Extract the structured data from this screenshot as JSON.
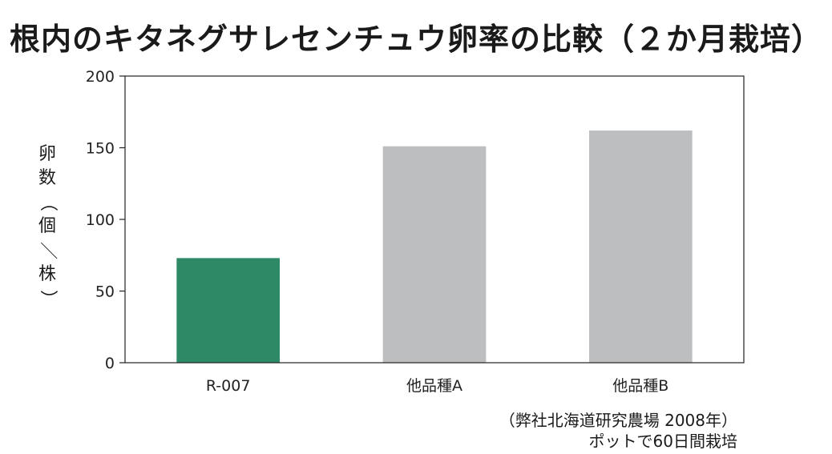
{
  "title": "根内のキタネグサレセンチュウ卵率の比較（２か月栽培）",
  "chart_data": {
    "type": "bar",
    "categories": [
      "R-007",
      "他品種A",
      "他品種B"
    ],
    "values": [
      73,
      151,
      162
    ],
    "bar_colors": [
      "#2e8a66",
      "#bdbec0",
      "#bdbec0"
    ],
    "ylabel": "卵数（個／株）",
    "ylim": [
      0,
      200
    ],
    "yticks": [
      "0",
      "50",
      "100",
      "150",
      "200"
    ],
    "grid": false
  },
  "notes": {
    "line1": "（弊社北海道研究農場 2008年）",
    "line2": "ポットで60日間栽培"
  }
}
